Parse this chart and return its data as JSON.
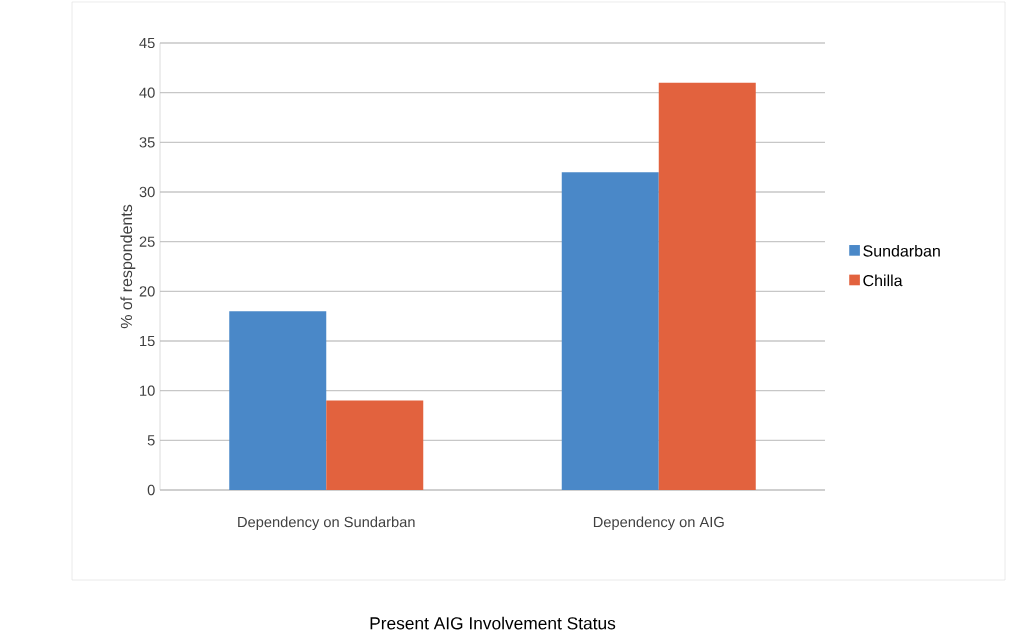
{
  "chart_data": {
    "type": "bar",
    "xlabel": "Present AIG Involvement Status",
    "ylabel": "% of respondents",
    "categories": [
      "Dependency on Sundarban",
      "Dependency on AIG"
    ],
    "series": [
      {
        "name": "Sundarban",
        "color": "#4a88c8",
        "values": [
          18,
          32
        ]
      },
      {
        "name": "Chilla",
        "color": "#e2623e",
        "values": [
          9,
          41
        ]
      }
    ],
    "ylim": [
      0,
      45
    ],
    "yticks": [
      0,
      5,
      10,
      15,
      20,
      25,
      30,
      35,
      40,
      45
    ],
    "grid": "y",
    "legend": "right"
  }
}
